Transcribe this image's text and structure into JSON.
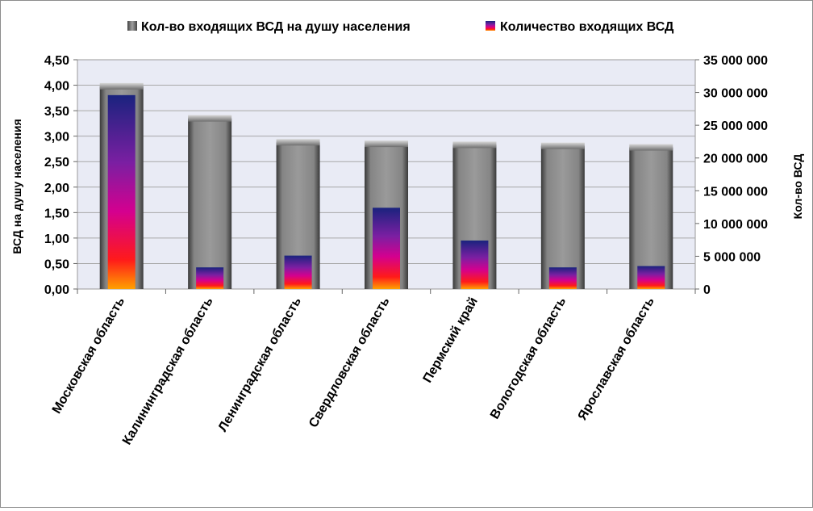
{
  "chart_data": {
    "type": "bar",
    "categories": [
      "Московская область",
      "Калининградская область",
      "Ленинградская область",
      "Свердловская область",
      "Пермский край",
      "Вологодская область",
      "Ярославская область"
    ],
    "series": [
      {
        "name": "Кол-во входящих ВСД на душу населения",
        "axis": "left",
        "values": [
          3.98,
          3.35,
          2.88,
          2.85,
          2.83,
          2.81,
          2.78
        ],
        "color": "#8c8c8c"
      },
      {
        "name": "Количество входящих ВСД",
        "axis": "right",
        "values": [
          29600000,
          3300000,
          5100000,
          12400000,
          7400000,
          3300000,
          3500000
        ],
        "color": "#cc0099"
      }
    ],
    "left_axis": {
      "label": "ВСД на душу населения",
      "min": 0,
      "max": 4.5,
      "ticks": [
        "0,00",
        "0,50",
        "1,00",
        "1,50",
        "2,00",
        "2,50",
        "3,00",
        "3,50",
        "4,00",
        "4,50"
      ]
    },
    "right_axis": {
      "label": "Кол-во ВСД",
      "min": 0,
      "max": 35000000,
      "ticks": [
        "0",
        "5 000 000",
        "10 000 000",
        "15 000 000",
        "20 000 000",
        "25 000 000",
        "30 000 000",
        "35 000 000"
      ]
    },
    "grid": true,
    "legend_position": "top"
  }
}
